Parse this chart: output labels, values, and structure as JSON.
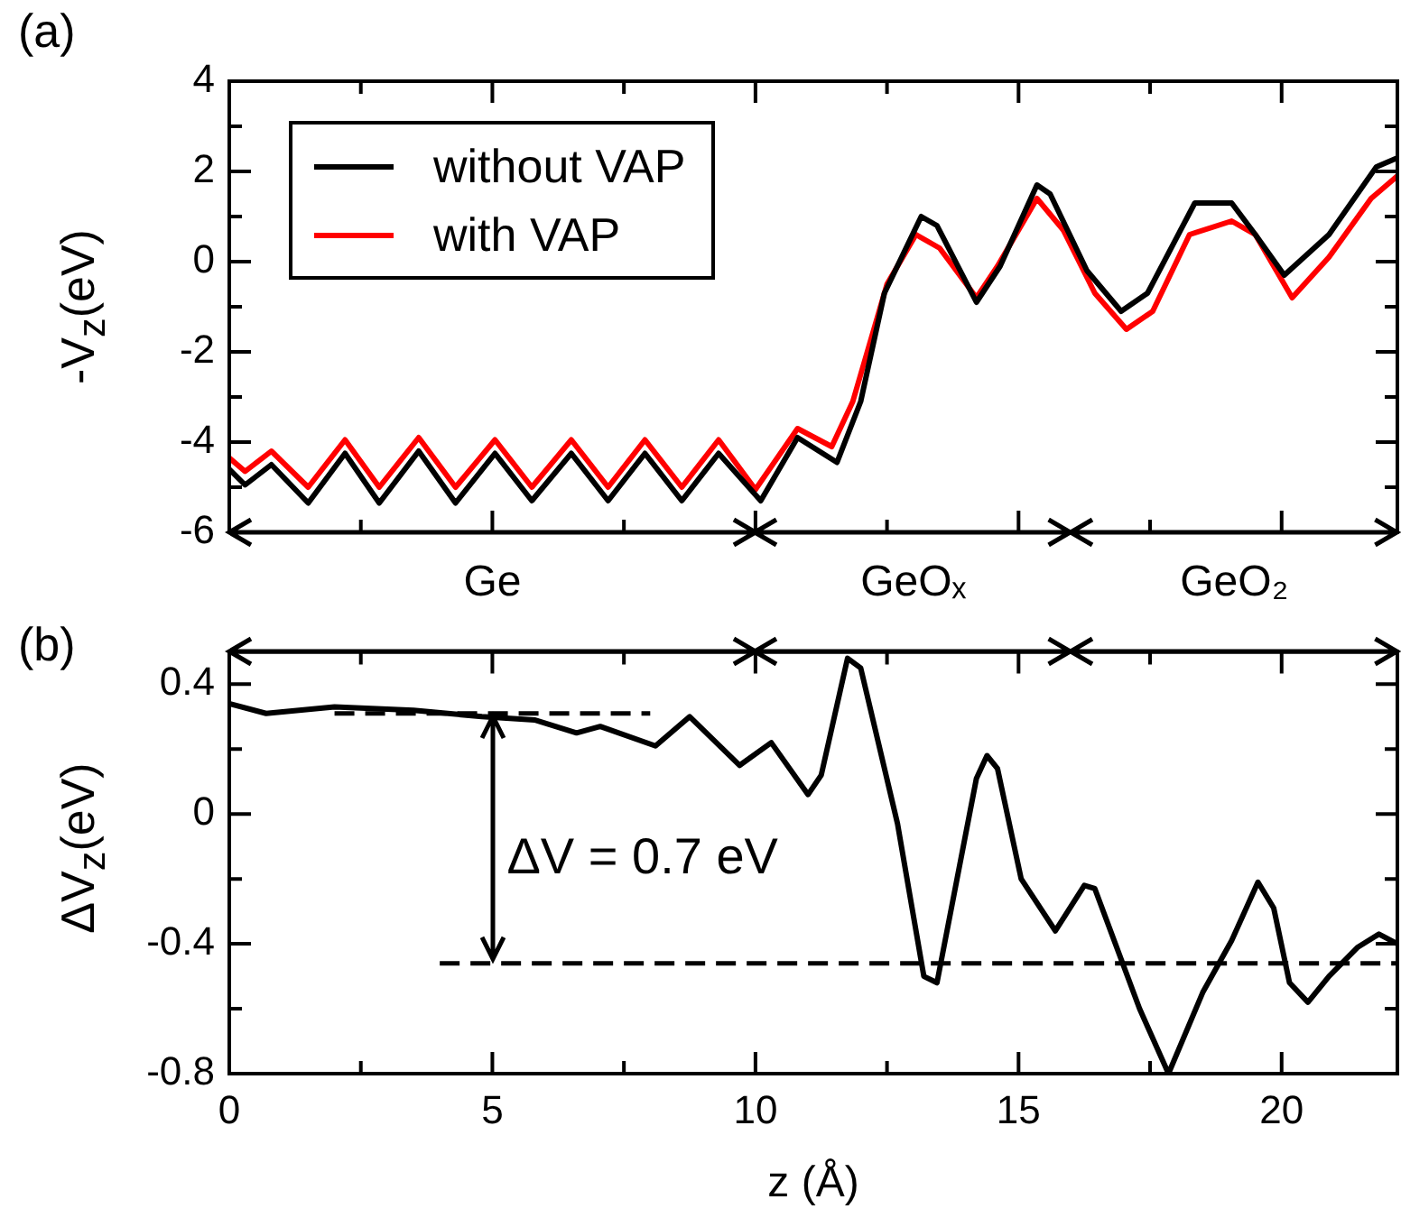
{
  "chart_data": [
    {
      "type": "line",
      "title": "(a)",
      "ylabel": "-V$_{z}$(eV)",
      "xlim": [
        0,
        22.2
      ],
      "xticks": [
        0,
        {
          "value": 2.5,
          "label": null
        },
        5,
        {
          "value": 7.5,
          "label": null
        },
        10,
        {
          "value": 12.5,
          "label": null
        },
        15,
        {
          "value": 17.5,
          "label": null
        },
        20
      ],
      "ylim": [
        -6,
        4
      ],
      "yticks": [
        -6,
        {
          "value": -5,
          "label": null
        },
        -4,
        {
          "value": -3,
          "label": null
        },
        -2,
        {
          "value": -1,
          "label": null
        },
        0,
        {
          "value": 1,
          "label": null
        },
        2,
        {
          "value": 3,
          "label": null
        },
        4
      ],
      "tick_labels": "y",
      "grid": false,
      "legend": "top left",
      "marker": "none",
      "annotations": [
        "Ge",
        "GeOₓ",
        "GeO₂"
      ],
      "series": [
        {
          "name": "without VAP",
          "color": "#000000",
          "x": [
            0,
            0.3,
            0.8,
            1.5,
            2.2,
            2.85,
            3.6,
            4.3,
            5.05,
            5.75,
            6.5,
            7.2,
            7.9,
            8.6,
            9.3,
            10.1,
            10.8,
            11.55,
            12.0,
            12.45,
            13.15,
            13.45,
            14.2,
            14.65,
            15.35,
            15.6,
            16.3,
            16.95,
            17.45,
            18.35,
            19.05,
            19.5,
            20.05,
            20.9,
            21.8,
            22.2
          ],
          "values": [
            -4.6,
            -4.95,
            -4.5,
            -5.35,
            -4.25,
            -5.35,
            -4.2,
            -5.35,
            -4.25,
            -5.3,
            -4.25,
            -5.3,
            -4.25,
            -5.3,
            -4.25,
            -5.3,
            -3.9,
            -4.45,
            -3.1,
            -0.7,
            1.0,
            0.8,
            -0.9,
            -0.1,
            1.7,
            1.5,
            -0.2,
            -1.1,
            -0.7,
            1.3,
            1.3,
            0.6,
            -0.3,
            0.6,
            2.1,
            2.3
          ]
        },
        {
          "name": "with VAP",
          "color": "#ff0000",
          "x": [
            0,
            0.3,
            0.8,
            1.5,
            2.2,
            2.85,
            3.6,
            4.3,
            5.05,
            5.75,
            6.5,
            7.2,
            7.9,
            8.6,
            9.3,
            10.0,
            10.8,
            11.45,
            11.85,
            12.5,
            13.05,
            13.5,
            14.2,
            14.6,
            15.35,
            15.85,
            16.45,
            17.05,
            17.55,
            18.25,
            19.05,
            19.5,
            20.2,
            20.9,
            21.7,
            22.2
          ],
          "values": [
            -4.35,
            -4.65,
            -4.2,
            -5.0,
            -3.95,
            -5.0,
            -3.9,
            -5.0,
            -3.95,
            -5.0,
            -3.95,
            -5.0,
            -3.95,
            -5.0,
            -3.95,
            -5.05,
            -3.7,
            -4.1,
            -3.1,
            -0.5,
            0.6,
            0.3,
            -0.8,
            -0.1,
            1.4,
            0.7,
            -0.7,
            -1.5,
            -1.1,
            0.6,
            0.9,
            0.6,
            -0.8,
            0.1,
            1.4,
            1.9
          ]
        }
      ]
    },
    {
      "type": "line",
      "title": "(b)",
      "xlabel": "z (Å)",
      "ylabel": "ΔV$_{z}$(eV)",
      "xlim": [
        0,
        22.2
      ],
      "xticks": [
        0,
        {
          "value": 2.5,
          "label": null
        },
        5,
        {
          "value": 7.5,
          "label": null
        },
        10,
        {
          "value": 12.5,
          "label": null
        },
        15,
        {
          "value": 17.5,
          "label": null
        },
        20
      ],
      "ylim": [
        -0.8,
        0.5
      ],
      "yticks": [
        -0.8,
        {
          "value": -0.6,
          "label": null
        },
        -0.4,
        {
          "value": -0.2,
          "label": null
        },
        0,
        {
          "value": 0.2,
          "label": null
        },
        0.4
      ],
      "grid": false,
      "marker": "none",
      "annotations": [
        "ΔV = 0.7 eV"
      ],
      "series": [
        {
          "color": "#000000",
          "x": [
            0,
            0.7,
            2.0,
            3.5,
            4.8,
            5.8,
            6.6,
            7.05,
            8.1,
            8.75,
            9.7,
            10.3,
            11.0,
            11.25,
            11.75,
            12.0,
            12.7,
            13.2,
            13.45,
            14.2,
            14.4,
            14.6,
            15.05,
            15.7,
            16.25,
            16.45,
            17.3,
            17.85,
            18.5,
            19.05,
            19.55,
            19.85,
            20.15,
            20.5,
            20.9,
            21.45,
            21.85,
            22.2
          ],
          "values": [
            0.34,
            0.31,
            0.33,
            0.32,
            0.3,
            0.29,
            0.25,
            0.27,
            0.21,
            0.3,
            0.15,
            0.22,
            0.06,
            0.12,
            0.48,
            0.45,
            -0.03,
            -0.5,
            -0.52,
            0.11,
            0.18,
            0.14,
            -0.2,
            -0.36,
            -0.22,
            -0.23,
            -0.6,
            -0.8,
            -0.55,
            -0.39,
            -0.21,
            -0.29,
            -0.52,
            -0.58,
            -0.5,
            -0.41,
            -0.37,
            -0.4
          ]
        },
        {
          "color": "#000000",
          "line_style": "dashed",
          "x": [
            2,
            8
          ],
          "values": [
            0.31,
            0.31
          ]
        },
        {
          "color": "#000000",
          "line_style": "dashed",
          "x": [
            4,
            22.2
          ],
          "values": [
            -0.46,
            -0.46
          ]
        }
      ]
    }
  ]
}
